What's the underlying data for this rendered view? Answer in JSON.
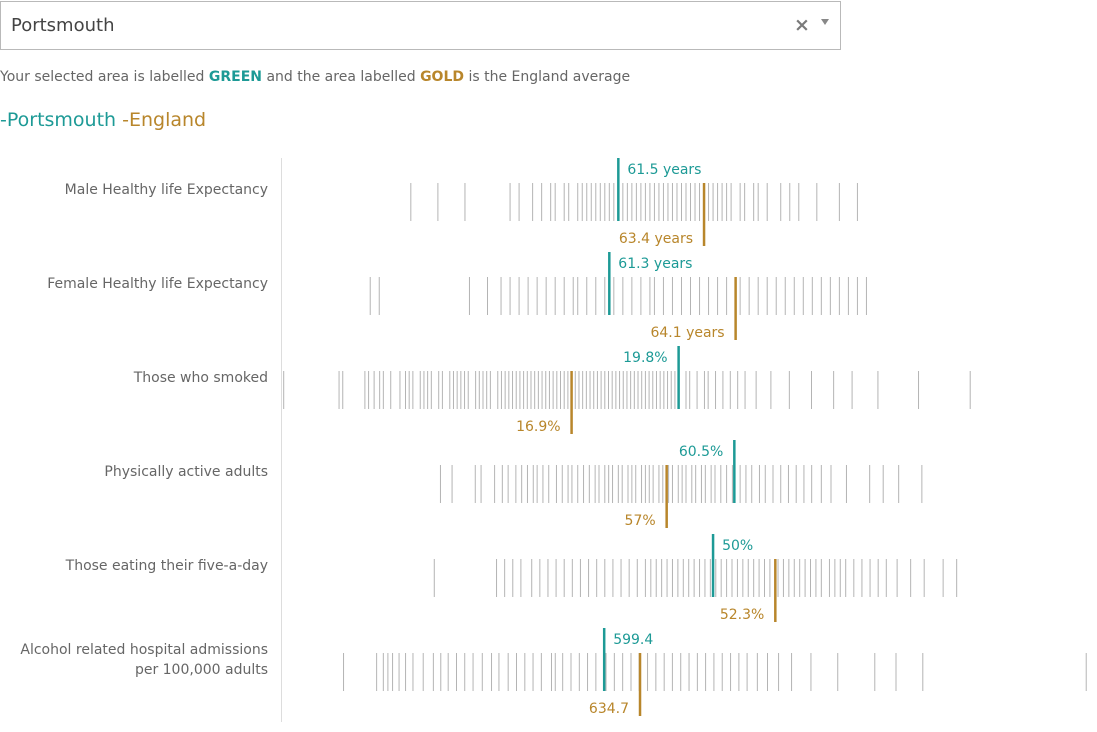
{
  "area_selector": {
    "selected_value": "Portsmouth",
    "clear_icon": "close-icon",
    "dropdown_icon": "chevron-down-icon"
  },
  "intro": {
    "prefix": "Your selected area is labelled ",
    "green_word": "GREEN",
    "middle": " and the area labelled ",
    "gold_word": "GOLD",
    "suffix": " is the England average"
  },
  "legend": {
    "selected_area": "-Portsmouth",
    "comparison": " -England"
  },
  "colors": {
    "selected": "#1d9a96",
    "england": "#b8862b",
    "distribution": "#b4b4b4",
    "axis": "#dddddd",
    "label": "#666666"
  },
  "chart_data": {
    "type": "strip",
    "rows": [
      {
        "label": [
          "Male Healthy life Expectancy"
        ],
        "selected": {
          "value": 61.5,
          "label": "61.5 years"
        },
        "england": {
          "value": 63.4,
          "label": "63.4 years"
        },
        "domain": [
          54.0,
          72.0
        ],
        "distribution": [
          56.9,
          57.5,
          58.1,
          59.1,
          59.3,
          59.6,
          59.8,
          60.0,
          60.1,
          60.3,
          60.4,
          60.6,
          60.7,
          60.8,
          60.9,
          61.0,
          61.1,
          61.2,
          61.3,
          61.4,
          61.6,
          61.7,
          61.8,
          61.9,
          62.0,
          62.1,
          62.2,
          62.3,
          62.4,
          62.5,
          62.6,
          62.7,
          62.8,
          62.9,
          63.0,
          63.1,
          63.2,
          63.3,
          63.5,
          63.6,
          63.7,
          63.8,
          63.9,
          64.0,
          64.2,
          64.3,
          64.5,
          64.6,
          64.8,
          65.1,
          65.3,
          65.5,
          65.9,
          66.4,
          66.8
        ]
      },
      {
        "label": [
          "Female Healthy life Expectancy"
        ],
        "selected": {
          "value": 61.3,
          "label": "61.3 years"
        },
        "england": {
          "value": 64.1,
          "label": "64.1 years"
        },
        "domain": [
          54.0,
          72.0
        ],
        "distribution": [
          56.0,
          56.2,
          58.2,
          58.6,
          58.9,
          59.1,
          59.3,
          59.5,
          59.7,
          59.9,
          60.1,
          60.3,
          60.5,
          60.6,
          60.8,
          61.0,
          61.2,
          61.4,
          61.6,
          61.8,
          62.0,
          62.2,
          62.3,
          62.5,
          62.7,
          62.9,
          63.1,
          63.3,
          63.5,
          63.7,
          63.9,
          64.2,
          64.4,
          64.6,
          64.8,
          65.0,
          65.2,
          65.4,
          65.6,
          65.8,
          66.0,
          66.2,
          66.4,
          66.6,
          66.8,
          67.0
        ]
      },
      {
        "label": [
          "Those who smoked"
        ],
        "selected": {
          "value": 19.8,
          "label": "19.8%"
        },
        "england": {
          "value": 16.9,
          "label": "16.9%"
        },
        "domain": [
          9.0,
          31.0
        ],
        "distribution": [
          9.1,
          10.6,
          10.7,
          11.3,
          11.4,
          11.55,
          11.7,
          11.8,
          12.0,
          12.25,
          12.4,
          12.5,
          12.6,
          12.8,
          12.9,
          13.0,
          13.1,
          13.3,
          13.4,
          13.6,
          13.7,
          13.8,
          13.9,
          14.0,
          14.1,
          14.3,
          14.4,
          14.5,
          14.6,
          14.7,
          14.9,
          15.0,
          15.1,
          15.2,
          15.3,
          15.4,
          15.5,
          15.6,
          15.7,
          15.8,
          15.9,
          16.0,
          16.1,
          16.2,
          16.3,
          16.4,
          16.5,
          16.6,
          16.7,
          16.8,
          17.0,
          17.1,
          17.2,
          17.3,
          17.4,
          17.5,
          17.6,
          17.7,
          17.8,
          17.9,
          18.0,
          18.1,
          18.2,
          18.3,
          18.4,
          18.5,
          18.6,
          18.7,
          18.8,
          18.9,
          19.0,
          19.1,
          19.2,
          19.3,
          19.4,
          19.5,
          19.6,
          19.7,
          20.0,
          20.1,
          20.3,
          20.5,
          20.6,
          20.8,
          21.0,
          21.2,
          21.4,
          21.6,
          21.9,
          22.3,
          22.8,
          23.4,
          24.0,
          24.5,
          25.2,
          26.3,
          27.7
        ]
      },
      {
        "label": [
          "Physically active adults"
        ],
        "selected": {
          "value": 60.5,
          "label": "60.5%"
        },
        "england": {
          "value": 57,
          "label": "57%"
        },
        "domain": [
          37.0,
          79.0
        ],
        "distribution": [
          45.3,
          45.9,
          47.1,
          47.4,
          48.1,
          48.5,
          48.8,
          49.2,
          49.5,
          49.8,
          50.1,
          50.3,
          50.6,
          50.9,
          51.3,
          51.6,
          51.9,
          52.1,
          52.4,
          52.7,
          53.0,
          53.3,
          53.5,
          53.8,
          54.0,
          54.2,
          54.5,
          54.7,
          55.0,
          55.2,
          55.4,
          55.7,
          55.9,
          56.1,
          56.3,
          56.6,
          56.8,
          57.1,
          57.3,
          57.6,
          57.8,
          58.0,
          58.3,
          58.5,
          58.8,
          59.0,
          59.3,
          59.5,
          59.8,
          60.1,
          60.4,
          60.8,
          61.1,
          61.4,
          61.8,
          62.1,
          62.5,
          62.9,
          63.3,
          63.7,
          64.1,
          64.5,
          65.0,
          65.5,
          66.3,
          67.5,
          68.2,
          69.0,
          70.2
        ]
      },
      {
        "label": [
          "Those eating their five-a-day"
        ],
        "selected": {
          "value": 50,
          "label": "50%"
        },
        "england": {
          "value": 52.3,
          "label": "52.3%"
        },
        "domain": [
          34.0,
          64.0
        ],
        "distribution": [
          39.7,
          42.0,
          42.3,
          42.6,
          42.9,
          43.3,
          43.6,
          43.9,
          44.2,
          44.5,
          44.8,
          45.1,
          45.4,
          45.7,
          46.0,
          46.3,
          46.6,
          46.9,
          47.2,
          47.5,
          47.7,
          47.9,
          48.1,
          48.3,
          48.5,
          48.7,
          48.9,
          49.1,
          49.3,
          49.5,
          49.7,
          49.9,
          50.1,
          50.3,
          50.5,
          50.7,
          50.9,
          51.1,
          51.3,
          51.5,
          51.7,
          51.9,
          52.1,
          52.4,
          52.6,
          52.8,
          53.0,
          53.2,
          53.4,
          53.6,
          53.8,
          54.0,
          54.3,
          54.5,
          54.7,
          54.9,
          55.2,
          55.5,
          55.8,
          56.1,
          56.4,
          56.8,
          57.3,
          57.8,
          58.5,
          59.0
        ]
      },
      {
        "label": [
          "Alcohol related hospital admissions",
          "per 100,000 adults"
        ],
        "selected": {
          "value": 599.4,
          "label": "599.4"
        },
        "england": {
          "value": 634.7,
          "label": "634.7"
        },
        "domain": [
          280.0,
          1080.0
        ],
        "distribution": [
          342.6,
          375.2,
          381.8,
          386.3,
          390.9,
          397.3,
          403.7,
          411.0,
          421.1,
          431.1,
          438.4,
          445.7,
          453.9,
          462.0,
          470.2,
          479.3,
          488.4,
          495.7,
          504.8,
          513.0,
          521.2,
          529.3,
          537.5,
          547.5,
          551.2,
          558.5,
          566.7,
          574.9,
          583.0,
          591.2,
          601.2,
          609.4,
          617.6,
          625.8,
          633.9,
          642.1,
          650.3,
          658.5,
          666.6,
          674.8,
          683.0,
          691.2,
          699.3,
          707.5,
          715.7,
          723.9,
          732.1,
          740.2,
          750.3,
          760.3,
          771.2,
          784.0,
          803.1,
          829.5,
          866.0,
          886.9,
          913.3,
          1074.3
        ]
      }
    ]
  }
}
